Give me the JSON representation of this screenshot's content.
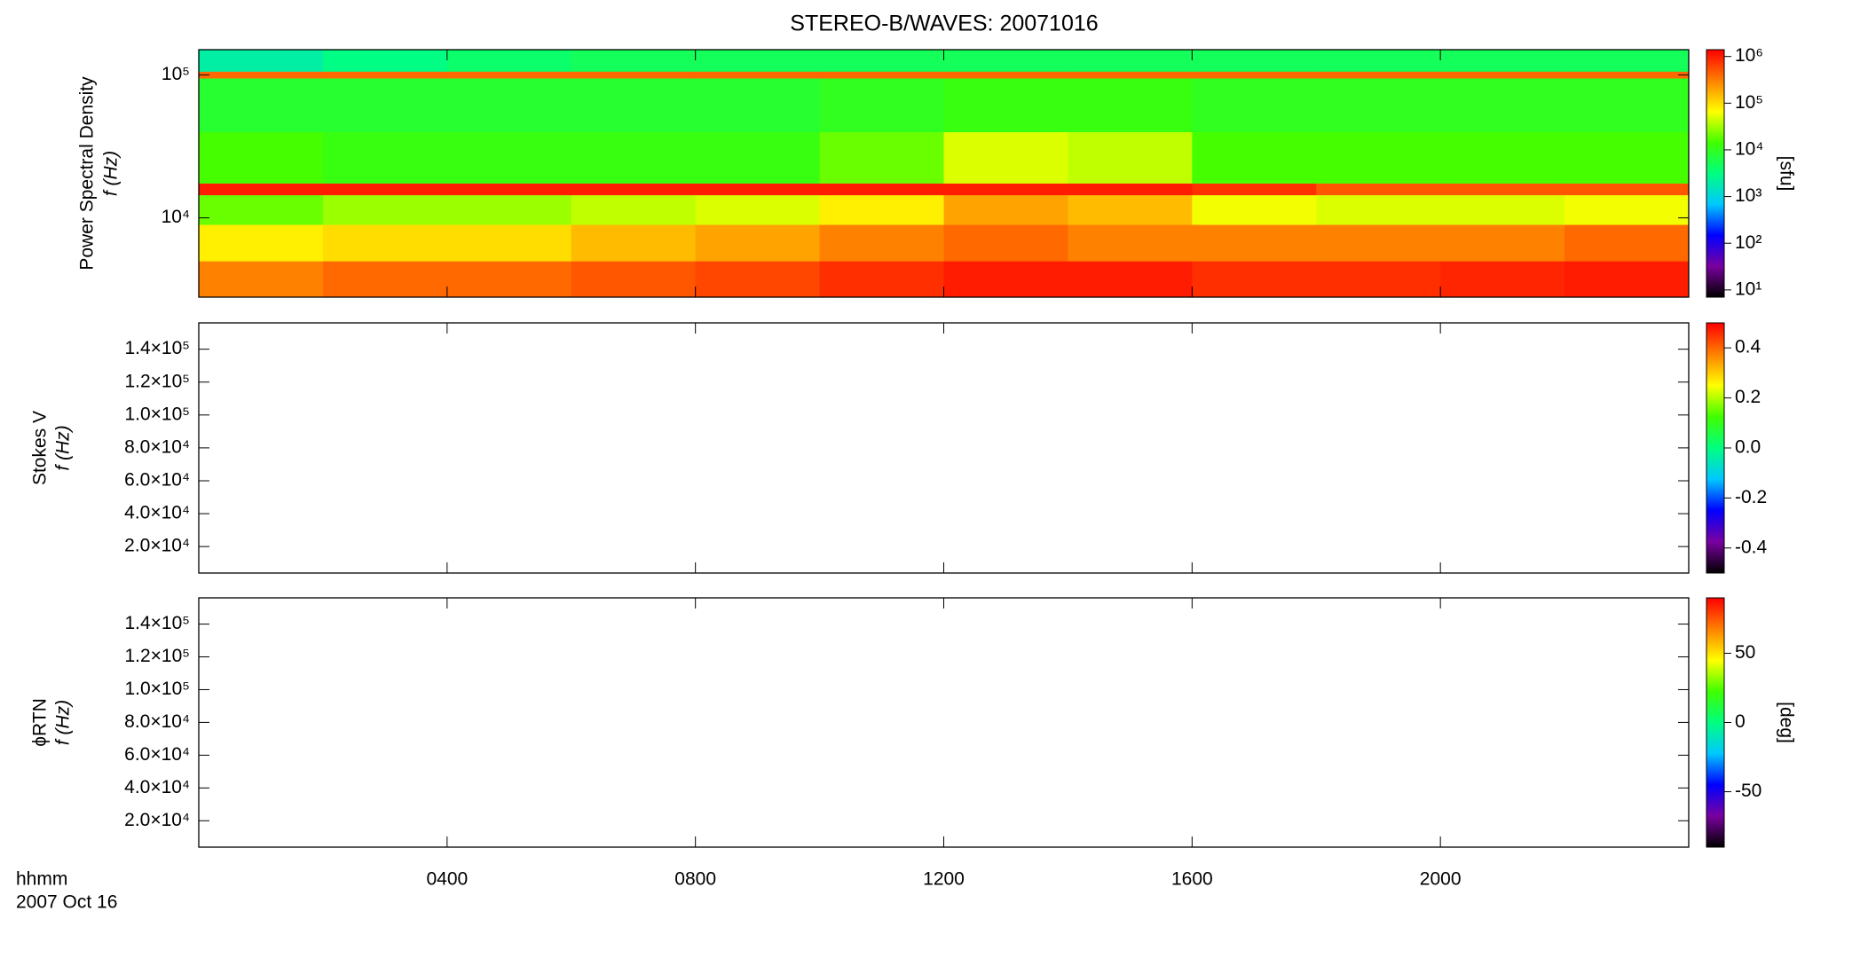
{
  "chart_data": [
    {
      "type": "heatmap",
      "title": "STEREO-B/WAVES: 20071016",
      "ylabel": "Power Spectral Density",
      "ylabel2": "f (Hz)",
      "zlabel": "[sfu]",
      "xlim": [
        0,
        24
      ],
      "ylim": [
        2790,
        150000
      ],
      "log_y": true,
      "yticks": [
        {
          "value": 10000,
          "label": "10⁴"
        },
        {
          "value": 100000,
          "label": "10⁵"
        }
      ],
      "zlim": [
        7,
        1400000
      ],
      "log_z": true,
      "zticks": [
        {
          "value": 10,
          "label": "10¹"
        },
        {
          "value": 100,
          "label": "10²"
        },
        {
          "value": 1000,
          "label": "10³"
        },
        {
          "value": 10000,
          "label": "10⁴"
        },
        {
          "value": 100000,
          "label": "10⁵"
        },
        {
          "value": 1000000,
          "label": "10⁶"
        }
      ],
      "colormap": [
        "#000000",
        "#7a00a0",
        "#0000ff",
        "#00c8ff",
        "#00ff80",
        "#40ff00",
        "#ffff00",
        "#ff8000",
        "#ff0000"
      ],
      "time_bins": [
        0,
        2,
        4,
        6,
        8,
        10,
        12,
        14,
        16,
        18,
        20,
        22,
        24
      ],
      "freq_bins": [
        2790,
        5000,
        9000,
        14500,
        17500,
        40000,
        95000,
        106000,
        150000
      ],
      "z": [
        [
          300000,
          400000,
          400000,
          500000,
          600000,
          800000,
          1000000,
          1000000,
          800000,
          800000,
          900000,
          1000000
        ],
        [
          80000,
          100000,
          100000,
          150000,
          200000,
          300000,
          400000,
          300000,
          300000,
          300000,
          300000,
          400000
        ],
        [
          20000,
          30000,
          30000,
          40000,
          50000,
          80000,
          200000,
          150000,
          60000,
          50000,
          50000,
          60000
        ],
        [
          1000000,
          1000000,
          1000000,
          1000000,
          1000000,
          1000000,
          1000000,
          1000000,
          800000,
          500000,
          500000,
          500000
        ],
        [
          15000,
          12000,
          12000,
          12000,
          12000,
          20000,
          50000,
          40000,
          15000,
          15000,
          15000,
          15000
        ],
        [
          8000,
          8000,
          8000,
          8000,
          8000,
          10000,
          12000,
          12000,
          10000,
          10000,
          10000,
          10000
        ],
        [
          400000,
          400000,
          400000,
          400000,
          400000,
          400000,
          400000,
          400000,
          400000,
          400000,
          400000,
          400000
        ],
        [
          2000,
          3000,
          4000,
          5000,
          5000,
          5000,
          5000,
          5000,
          5000,
          5000,
          5000,
          5000
        ]
      ]
    },
    {
      "type": "heatmap",
      "ylabel": "Stokes V",
      "ylabel2": "f (Hz)",
      "xlim": [
        0,
        24
      ],
      "ylim": [
        3900,
        156000
      ],
      "log_y": false,
      "yticks": [
        {
          "value": 20000,
          "label": "2.0×10⁴"
        },
        {
          "value": 40000,
          "label": "4.0×10⁴"
        },
        {
          "value": 60000,
          "label": "6.0×10⁴"
        },
        {
          "value": 80000,
          "label": "8.0×10⁴"
        },
        {
          "value": 100000,
          "label": "1.0×10⁵"
        },
        {
          "value": 120000,
          "label": "1.2×10⁵"
        },
        {
          "value": 140000,
          "label": "1.4×10⁵"
        }
      ],
      "zlim": [
        -0.5,
        0.5
      ],
      "log_z": false,
      "zticks": [
        -0.4,
        -0.2,
        {
          "value": 0,
          "label": "0.0"
        },
        0.2,
        0.4
      ],
      "colormap": [
        "#000000",
        "#7a00a0",
        "#0000ff",
        "#00c8ff",
        "#00ff80",
        "#40ff00",
        "#ffff00",
        "#ff8000",
        "#ff0000"
      ]
    },
    {
      "type": "heatmap",
      "ylabel": "ϕRTN",
      "ylabel2": "f (Hz)",
      "zlabel": "[deg]",
      "xlim": [
        0,
        24
      ],
      "ylim": [
        3900,
        156000
      ],
      "log_y": false,
      "yticks": [
        {
          "value": 20000,
          "label": "2.0×10⁴"
        },
        {
          "value": 40000,
          "label": "4.0×10⁴"
        },
        {
          "value": 60000,
          "label": "6.0×10⁴"
        },
        {
          "value": 80000,
          "label": "8.0×10⁴"
        },
        {
          "value": 100000,
          "label": "1.0×10⁵"
        },
        {
          "value": 120000,
          "label": "1.2×10⁵"
        },
        {
          "value": 140000,
          "label": "1.4×10⁵"
        }
      ],
      "zlim": [
        -90,
        90
      ],
      "log_z": false,
      "zticks": [
        -50,
        0,
        50
      ],
      "colormap": [
        "#000000",
        "#7a00a0",
        "#0000ff",
        "#00c8ff",
        "#00ff80",
        "#40ff00",
        "#ffff00",
        "#ff8000",
        "#ff0000"
      ],
      "xlabel": "hhmm",
      "date": "2007 Oct 16",
      "xticks": [
        {
          "value": 4,
          "label": "0400"
        },
        {
          "value": 8,
          "label": "0800"
        },
        {
          "value": 12,
          "label": "1200"
        },
        {
          "value": 16,
          "label": "1600"
        },
        {
          "value": 20,
          "label": "2000"
        }
      ]
    }
  ]
}
